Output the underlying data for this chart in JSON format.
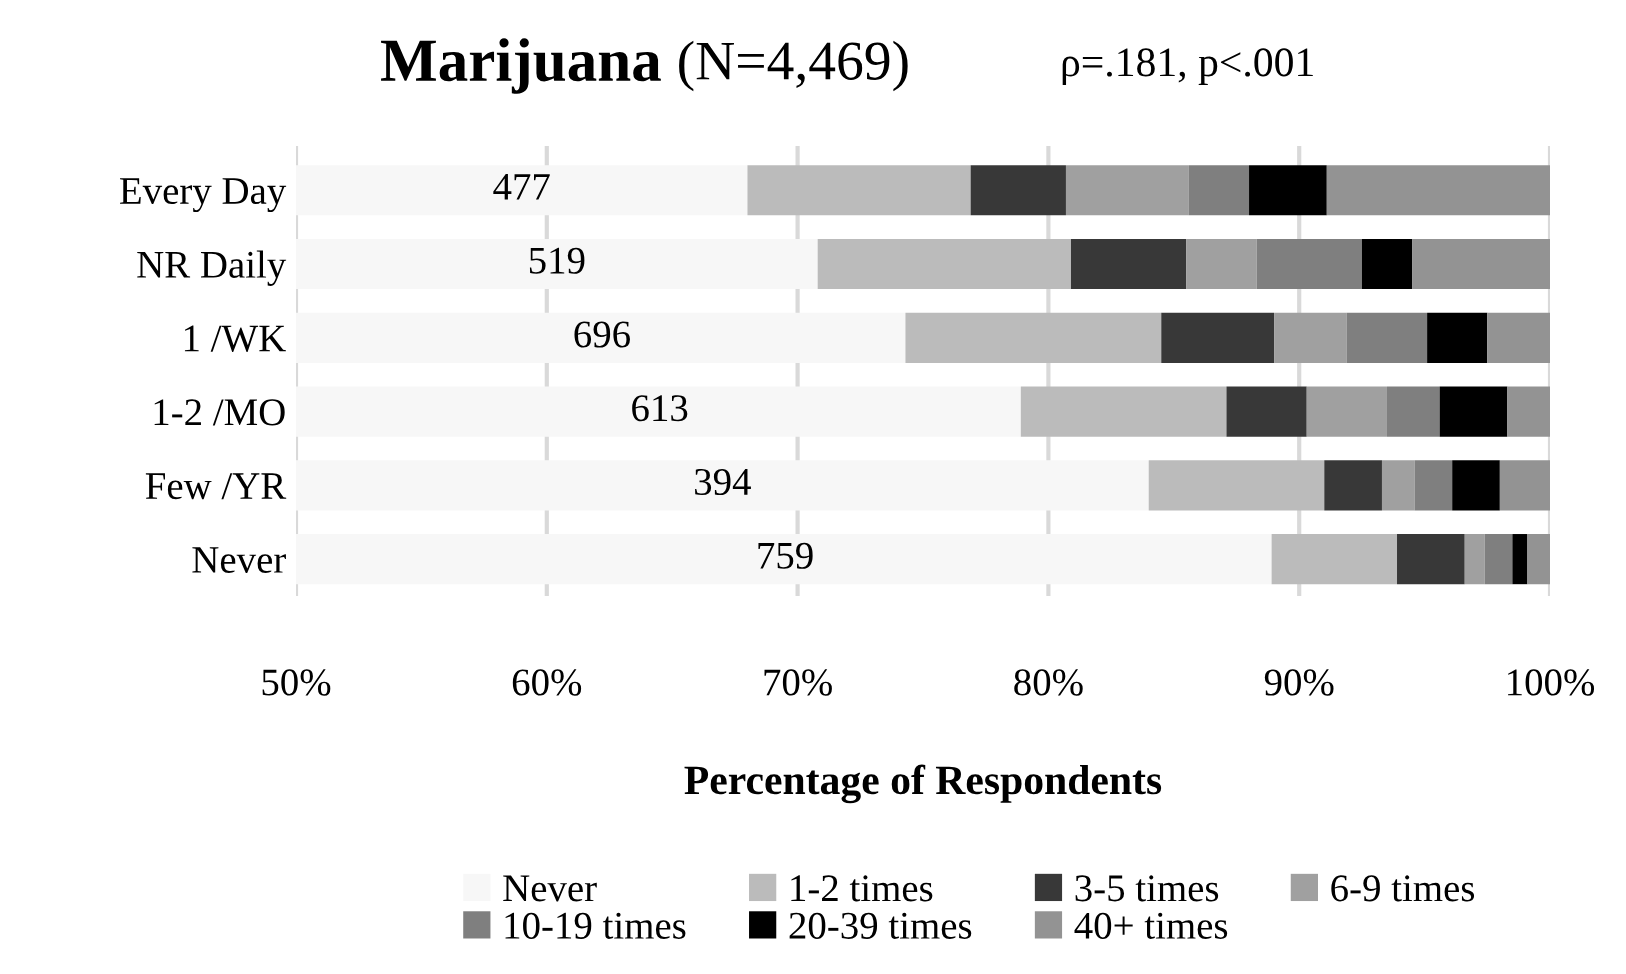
{
  "chart_data": {
    "type": "bar",
    "orientation": "horizontal",
    "title": "Marijuana (N=4,469)",
    "subtitle": "ρ=.181, p<.001",
    "xlabel": "Percentage of Respondents",
    "categories": [
      "Every Day",
      "NR Daily",
      "1 /WK",
      "1-2 /MO",
      "Few /YR",
      "Never"
    ],
    "series": [
      {
        "name": "Never",
        "color": "#f7f7f7",
        "values": [
          68.0,
          70.8,
          74.3,
          78.9,
          84.0,
          88.9
        ],
        "base": [
          0,
          0,
          0,
          0,
          0,
          0
        ]
      },
      {
        "name": "1-2 times",
        "color": "#bbbbbb",
        "values": [
          8.9,
          10.1,
          10.2,
          8.2,
          7.0,
          5.0
        ],
        "base": [
          68.0,
          70.8,
          74.3,
          78.9,
          84.0,
          88.9
        ]
      },
      {
        "name": "3-5 times",
        "color": "#383838",
        "values": [
          3.8,
          4.6,
          4.5,
          3.2,
          2.3,
          2.7
        ],
        "base": [
          76.9,
          80.9,
          84.5,
          87.1,
          91.0,
          93.9
        ]
      },
      {
        "name": "6-9 times",
        "color": "#a0a0a0",
        "values": [
          4.9,
          2.8,
          2.9,
          3.2,
          1.3,
          0.8
        ],
        "base": [
          80.7,
          85.5,
          89.0,
          90.3,
          93.3,
          96.6
        ]
      },
      {
        "name": "10-19 times",
        "color": "#7f7f7f",
        "values": [
          2.4,
          4.2,
          3.2,
          2.1,
          1.5,
          1.1
        ],
        "base": [
          85.6,
          88.3,
          91.9,
          93.5,
          94.6,
          97.4
        ]
      },
      {
        "name": "20-39 times",
        "color": "#000000",
        "values": [
          3.1,
          2.0,
          2.4,
          2.7,
          1.9,
          0.6
        ],
        "base": [
          88.0,
          92.5,
          95.1,
          95.6,
          96.1,
          98.5
        ]
      },
      {
        "name": "40+ times",
        "color": "#939393",
        "values": [
          8.9,
          5.5,
          2.5,
          1.7,
          2.0,
          0.9
        ],
        "base": [
          91.1,
          94.5,
          97.5,
          98.3,
          98.0,
          99.1
        ]
      }
    ],
    "annotations": [
      {
        "text": "477",
        "x": 59.0,
        "y": "Every Day"
      },
      {
        "text": "519",
        "x": 60.4,
        "y": "NR Daily"
      },
      {
        "text": "696",
        "x": 62.2,
        "y": "1 /WK"
      },
      {
        "text": "613",
        "x": 64.5,
        "y": "1-2 /MO"
      },
      {
        "text": "394",
        "x": 67.0,
        "y": "Few /YR"
      },
      {
        "text": "759",
        "x": 69.5,
        "y": "Never"
      }
    ],
    "xlim": [
      50,
      100
    ],
    "xticks": [
      {
        "value": 50,
        "label": "50%"
      },
      {
        "value": 60,
        "label": "60%"
      },
      {
        "value": 70,
        "label": "70%"
      },
      {
        "value": 80,
        "label": "80%"
      },
      {
        "value": 90,
        "label": "90%"
      },
      {
        "value": 100,
        "label": "100%"
      }
    ],
    "grid": "x",
    "legend": "bottom"
  }
}
